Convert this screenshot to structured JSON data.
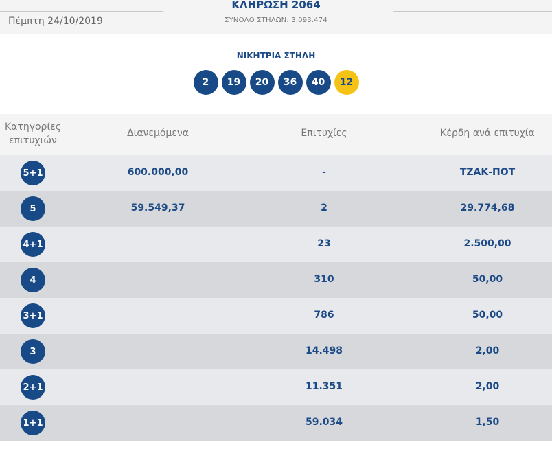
{
  "header": {
    "date": "Πέμπτη 24/10/2019",
    "draw_title": "ΚΛΗΡΩΣΗ 2064",
    "total_columns": "ΣΥΝΟΛΟ ΣΤΗΛΩΝ: 3.093.474"
  },
  "winning": {
    "title": "ΝΙΚΗΤΡΙΑ ΣΤΗΛΗ",
    "numbers": [
      "2",
      "19",
      "20",
      "36",
      "40"
    ],
    "joker": "12"
  },
  "table": {
    "headers": {
      "category_line1": "Κατηγορίες",
      "category_line2": "επιτυχιών",
      "distributed": "Διανεμόμενα",
      "wins": "Επιτυχίες",
      "prize_per_win": "Κέρδη ανά επιτυχία"
    },
    "rows": [
      {
        "category": "5+1",
        "distributed": "600.000,00",
        "wins": "-",
        "prize": "ΤΖΑΚ-ΠΟΤ"
      },
      {
        "category": "5",
        "distributed": "59.549,37",
        "wins": "2",
        "prize": "29.774,68"
      },
      {
        "category": "4+1",
        "distributed": "",
        "wins": "23",
        "prize": "2.500,00"
      },
      {
        "category": "4",
        "distributed": "",
        "wins": "310",
        "prize": "50,00"
      },
      {
        "category": "3+1",
        "distributed": "",
        "wins": "786",
        "prize": "50,00"
      },
      {
        "category": "3",
        "distributed": "",
        "wins": "14.498",
        "prize": "2,00"
      },
      {
        "category": "2+1",
        "distributed": "",
        "wins": "11.351",
        "prize": "2,00"
      },
      {
        "category": "1+1",
        "distributed": "",
        "wins": "59.034",
        "prize": "1,50"
      }
    ]
  },
  "colors": {
    "primary": "#174a86",
    "joker": "#f5c315",
    "row_light": "#e8e9ec",
    "row_dark": "#d7d8dc"
  }
}
